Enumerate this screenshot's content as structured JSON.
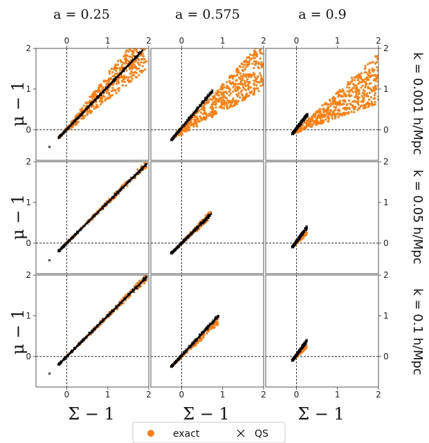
{
  "chart_data": {
    "type": "scatter",
    "column_titles": [
      "a = 0.25",
      "a = 0.575",
      "a = 0.9"
    ],
    "row_titles": [
      "k = 0.001 h/Mpc",
      "k = 0.05 h/Mpc",
      "k = 0.1 h/Mpc"
    ],
    "xlabel": "Σ − 1",
    "ylabel": "μ − 1",
    "xlim": [
      -0.75,
      2.0
    ],
    "ylim": [
      -0.75,
      2.0
    ],
    "x_ticks": [
      "0",
      "1",
      "2"
    ],
    "y_ticks": [
      "0",
      "1",
      "2"
    ],
    "reference_lines": {
      "x": 0,
      "y": 0,
      "style": "dashed"
    },
    "legend": {
      "position": "bottom-center",
      "entries": [
        {
          "label": "exact",
          "marker": "circle",
          "color": "#ff7f0e"
        },
        {
          "label": "QS",
          "marker": "x",
          "color": "#000000"
        }
      ]
    },
    "series_colors": {
      "exact": "#ff7f0e",
      "QS": "#000000"
    },
    "panels": [
      {
        "row": 0,
        "col": 0,
        "qs_line": {
          "x": [
            -0.2,
            1.85
          ],
          "y": [
            -0.2,
            1.95
          ]
        },
        "exact_region": {
          "x": [
            -0.2,
            1.95
          ],
          "y_lower_slope": 0.78,
          "y_upper_slope": 1.32
        },
        "outlier": [
          -0.42,
          -0.42
        ]
      },
      {
        "row": 0,
        "col": 1,
        "qs_line": {
          "x": [
            -0.25,
            0.75
          ],
          "y": [
            -0.25,
            0.95
          ]
        },
        "exact_region": {
          "x": [
            -0.25,
            2.0
          ],
          "y_lower_slope": 0.55,
          "y_upper_slope": 1.1
        },
        "outlier": [
          -0.25,
          -0.25
        ]
      },
      {
        "row": 0,
        "col": 2,
        "qs_line": {
          "x": [
            -0.1,
            0.27
          ],
          "y": [
            -0.1,
            0.38
          ]
        },
        "exact_region": {
          "x": [
            -0.1,
            2.0
          ],
          "y_lower_slope": 0.35,
          "y_upper_slope": 0.95
        },
        "outlier": [
          -0.1,
          -0.1
        ]
      },
      {
        "row": 1,
        "col": 0,
        "qs_line": {
          "x": [
            -0.2,
            1.95
          ],
          "y": [
            -0.2,
            1.95
          ]
        },
        "exact_region": {
          "x": [
            -0.2,
            1.95
          ],
          "y_lower_slope": 0.96,
          "y_upper_slope": 1.04
        },
        "outlier": [
          -0.42,
          -0.42
        ]
      },
      {
        "row": 1,
        "col": 1,
        "qs_line": {
          "x": [
            -0.25,
            0.72
          ],
          "y": [
            -0.25,
            0.72
          ]
        },
        "exact_region": {
          "x": [
            -0.25,
            0.72
          ],
          "y_lower_slope": 0.9,
          "y_upper_slope": 1.1
        },
        "outlier": [
          -0.25,
          -0.25
        ]
      },
      {
        "row": 1,
        "col": 2,
        "qs_line": {
          "x": [
            -0.1,
            0.25
          ],
          "y": [
            -0.1,
            0.38
          ]
        },
        "exact_region": {
          "x": [
            -0.1,
            0.25
          ],
          "y_lower_slope": 0.9,
          "y_upper_slope": 1.1
        },
        "outlier": [
          -0.1,
          -0.1
        ]
      },
      {
        "row": 2,
        "col": 0,
        "qs_line": {
          "x": [
            -0.2,
            1.95
          ],
          "y": [
            -0.2,
            1.95
          ]
        },
        "exact_region": {
          "x": [
            -0.2,
            1.95
          ],
          "y_lower_slope": 0.96,
          "y_upper_slope": 1.04
        },
        "outlier": [
          -0.42,
          -0.42
        ]
      },
      {
        "row": 2,
        "col": 1,
        "qs_line": {
          "x": [
            -0.25,
            0.9
          ],
          "y": [
            -0.25,
            1.0
          ]
        },
        "exact_region": {
          "x": [
            -0.25,
            0.9
          ],
          "y_lower_slope": 0.9,
          "y_upper_slope": 1.1
        },
        "outlier": [
          -0.25,
          -0.25
        ]
      },
      {
        "row": 2,
        "col": 2,
        "qs_line": {
          "x": [
            -0.1,
            0.25
          ],
          "y": [
            -0.1,
            0.38
          ]
        },
        "exact_region": {
          "x": [
            -0.1,
            0.25
          ],
          "y_lower_slope": 0.9,
          "y_upper_slope": 1.1
        },
        "outlier": [
          -0.1,
          -0.1
        ]
      }
    ]
  }
}
